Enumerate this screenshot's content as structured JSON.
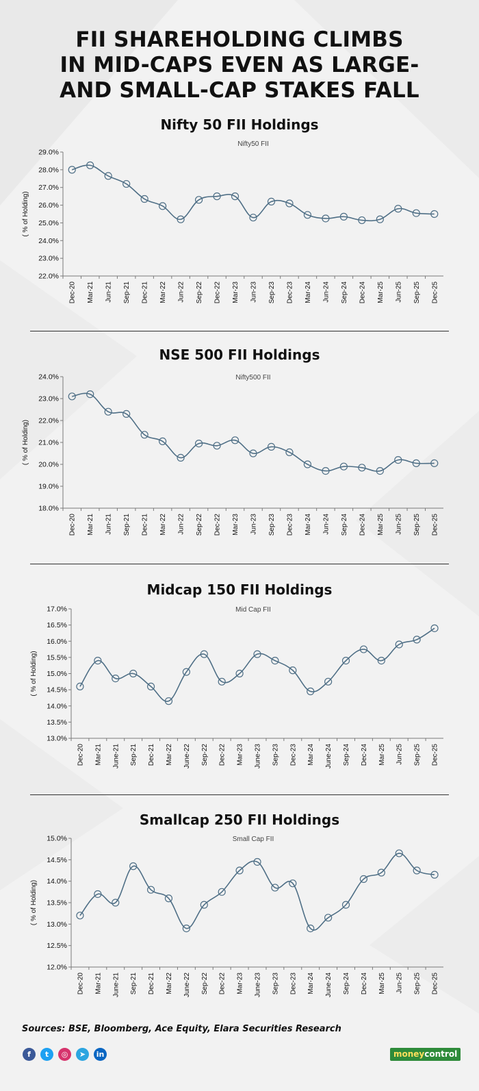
{
  "title_lines": [
    "FII SHAREHOLDING CLIMBS",
    "IN MID-CAPS EVEN AS LARGE-",
    "AND SMALL-CAP STAKES FALL"
  ],
  "chart_data": [
    {
      "type": "line",
      "heading": "Nifty 50 FII Holdings",
      "title": "Nifty50 FII",
      "ylabel": "( % of Holding)",
      "ylim": [
        22,
        29
      ],
      "ystep": 1,
      "y_tick_labels": [
        "22.0%",
        "23.0%",
        "24.0%",
        "25.0%",
        "26.0%",
        "27.0%",
        "28.0%",
        "29.0%"
      ],
      "categories": [
        "Dec-20",
        "Mar-21",
        "Jun-21",
        "Sep-21",
        "Dec-21",
        "Mar-22",
        "Jun-22",
        "Sep-22",
        "Dec-22",
        "Mar-23",
        "Jun-23",
        "Sep-23",
        "Dec-23",
        "Mar-24",
        "Jun-24",
        "Sep-24",
        "Dec-24",
        "Mar-25",
        "Jun-25",
        "Sep-25",
        "Dec-25"
      ],
      "series": [
        {
          "values": [
            28.0,
            28.25,
            27.65,
            27.2,
            26.35,
            25.95,
            25.2,
            26.3,
            26.5,
            26.5,
            25.3,
            26.2,
            26.1,
            25.45,
            25.25,
            25.35,
            25.15,
            25.2,
            25.8,
            25.55,
            25.5
          ]
        }
      ]
    },
    {
      "type": "line",
      "heading": "NSE 500 FII Holdings",
      "title": "Nifty500 FII",
      "ylabel": "( % of Holding)",
      "ylim": [
        18,
        24
      ],
      "ystep": 1,
      "y_tick_labels": [
        "18.0%",
        "19.0%",
        "20.0%",
        "21.0%",
        "22.0%",
        "23.0%",
        "24.0%"
      ],
      "categories": [
        "Dec-20",
        "Mar-21",
        "Jun-21",
        "Sep-21",
        "Dec-21",
        "Mar-22",
        "Jun-22",
        "Sep-22",
        "Dec-22",
        "Mar-23",
        "Jun-23",
        "Sep-23",
        "Dec-23",
        "Mar-24",
        "Jun-24",
        "Sep-24",
        "Dec-24",
        "Mar-25",
        "Jun-25",
        "Sep-25",
        "Dec-25"
      ],
      "series": [
        {
          "values": [
            23.1,
            23.2,
            22.4,
            22.3,
            21.35,
            21.05,
            20.3,
            20.95,
            20.85,
            21.1,
            20.5,
            20.8,
            20.55,
            20.0,
            19.7,
            19.9,
            19.85,
            19.7,
            20.2,
            20.05,
            20.05
          ]
        }
      ]
    },
    {
      "type": "line",
      "heading": "Midcap 150 FII Holdings",
      "title": "Mid Cap FII",
      "ylabel": "( % of Holding)",
      "ylim": [
        13,
        17
      ],
      "ystep": 0.5,
      "y_tick_labels": [
        "13.0%",
        "13.5%",
        "14.0%",
        "14.5%",
        "15.0%",
        "15.5%",
        "16.0%",
        "16.5%",
        "17.0%"
      ],
      "categories": [
        "Dec-20",
        "Mar-21",
        "June-21",
        "Sep-21",
        "Dec-21",
        "Mar-22",
        "June-22",
        "Sep-22",
        "Dec-22",
        "Mar-23",
        "June-23",
        "Sep-23",
        "Dec-23",
        "Mar-24",
        "June-24",
        "Sep-24",
        "Dec-24",
        "Mar-25",
        "Jun-25",
        "Sep-25",
        "Dec-25"
      ],
      "series": [
        {
          "values": [
            14.6,
            15.4,
            14.85,
            15.0,
            14.6,
            14.15,
            15.05,
            15.6,
            14.75,
            15.0,
            15.6,
            15.4,
            15.1,
            14.45,
            14.75,
            15.4,
            15.75,
            15.4,
            15.9,
            16.05,
            16.4
          ]
        }
      ]
    },
    {
      "type": "line",
      "heading": "Smallcap 250 FII Holdings",
      "title": "Small Cap FII",
      "ylabel": "( % of Holding)",
      "ylim": [
        12,
        15
      ],
      "ystep": 0.5,
      "y_tick_labels": [
        "12.0%",
        "12.5%",
        "13.0%",
        "13.5%",
        "14.0%",
        "14.5%",
        "15.0%"
      ],
      "categories": [
        "Dec-20",
        "Mar-21",
        "June-21",
        "Sep-21",
        "Dec-21",
        "Mar-22",
        "June-22",
        "Sep-22",
        "Dec-22",
        "Mar-23",
        "June-23",
        "Sep-23",
        "Dec-23",
        "Mar-24",
        "June-24",
        "Sep-24",
        "Dec-24",
        "Mar-25",
        "Jun-25",
        "Sep-25",
        "Dec-25"
      ],
      "series": [
        {
          "values": [
            13.2,
            13.7,
            13.5,
            14.35,
            13.8,
            13.6,
            12.9,
            13.45,
            13.75,
            14.25,
            14.45,
            13.85,
            13.95,
            12.9,
            13.15,
            13.45,
            14.05,
            14.2,
            14.65,
            14.25,
            14.15
          ]
        }
      ]
    }
  ],
  "colors": {
    "line": "#4f6f86",
    "marker": "#4f6f86",
    "axis": "#7a7a7a",
    "text": "#111111",
    "divider": "#333333",
    "logo_green": "#2e8b3a",
    "logo_yellow": "#ffdf5c"
  },
  "footer": {
    "sources": "Sources: BSE, Bloomberg, Ace Equity, Elara Securities Research",
    "social": [
      {
        "name": "facebook-icon",
        "glyph": "f",
        "color": "#3b5998"
      },
      {
        "name": "twitter-icon",
        "glyph": "t",
        "color": "#1da1f2"
      },
      {
        "name": "instagram-icon",
        "glyph": "◎",
        "color": "#d6336c"
      },
      {
        "name": "telegram-icon",
        "glyph": "➤",
        "color": "#2ca5e0"
      },
      {
        "name": "linkedin-icon",
        "glyph": "in",
        "color": "#0a66c2"
      }
    ],
    "logo_money": "money",
    "logo_control": "control"
  }
}
